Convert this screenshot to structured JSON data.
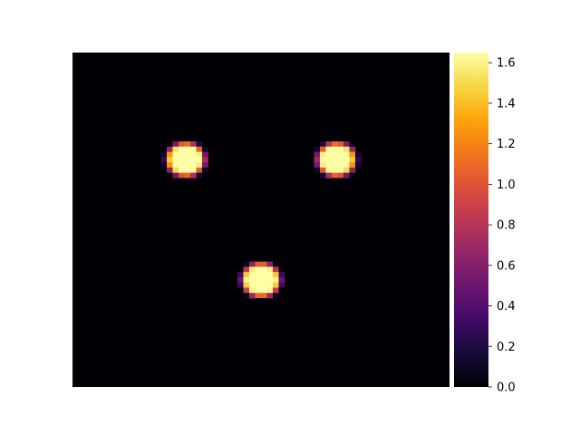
{
  "chart_data": {
    "type": "heatmap",
    "title": "",
    "xlabel": "",
    "ylabel": "",
    "axes_visible": false,
    "colormap": "inferno",
    "colorbar": {
      "placement": "right",
      "range": [
        0.0,
        1.65
      ],
      "ticks": [
        0.0,
        0.2,
        0.4,
        0.6,
        0.8,
        1.0,
        1.2,
        1.4,
        1.6
      ],
      "tick_labels": [
        "0.0",
        "0.2",
        "0.4",
        "0.6",
        "0.8",
        "1.0",
        "1.2",
        "1.4",
        "1.6"
      ]
    },
    "background_value": 0.0,
    "blobs": [
      {
        "name": "left-blob",
        "cx_frac": 0.3,
        "cy_frac": 0.32,
        "peak": 1.65,
        "radius_frac": 0.065
      },
      {
        "name": "right-blob",
        "cx_frac": 0.7,
        "cy_frac": 0.32,
        "peak": 1.65,
        "radius_frac": 0.065
      },
      {
        "name": "bottom-blob",
        "cx_frac": 0.5,
        "cy_frac": 0.68,
        "peak": 1.65,
        "radius_frac": 0.065
      }
    ]
  }
}
